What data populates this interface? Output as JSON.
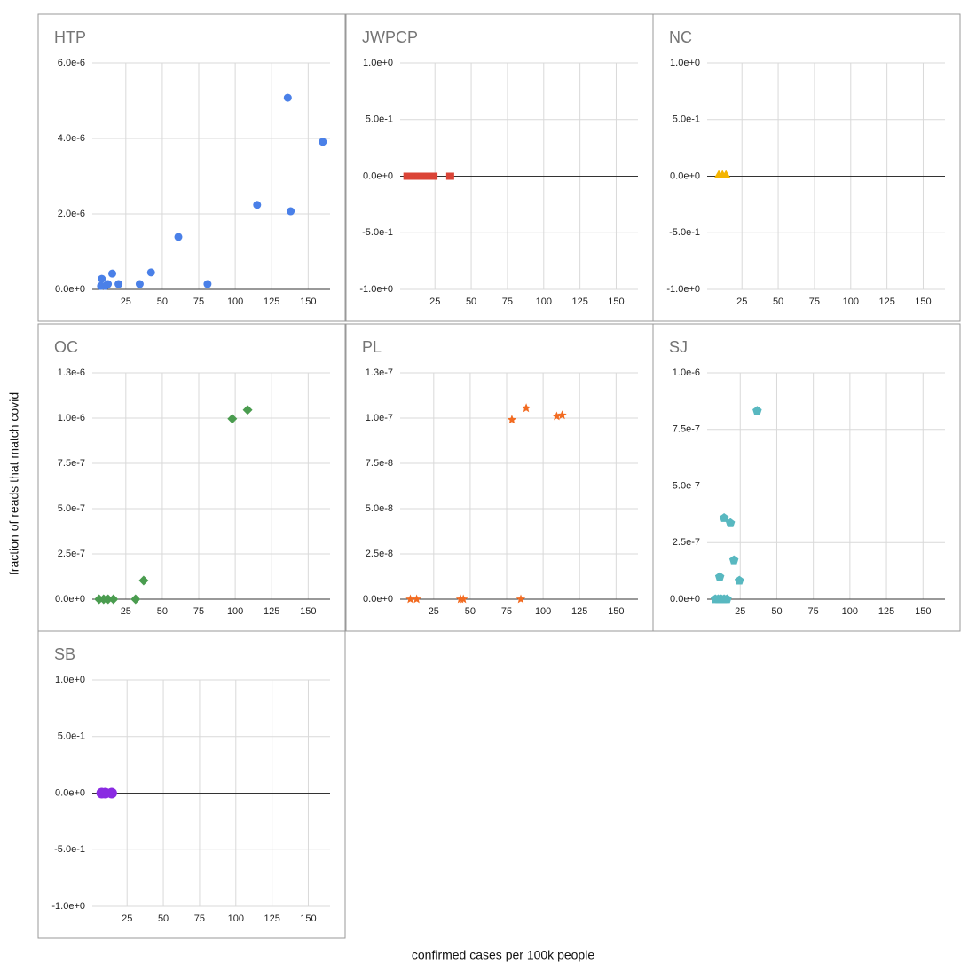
{
  "x_label": "confirmed cases per 100k people",
  "y_label": "fraction of reads that match covid",
  "chart_data": [
    {
      "type": "scatter",
      "title": "HTP",
      "color": "#4a80e8",
      "marker": "circle",
      "grid": true,
      "x": [
        8.5,
        8,
        11,
        12.7,
        15.7,
        20,
        34.5,
        42.3,
        61,
        81,
        115,
        136,
        138,
        160
      ],
      "values": [
        2.8e-07,
        9e-08,
        9e-08,
        1.4e-07,
        4.2e-07,
        1.4e-07,
        1.4e-07,
        4.5e-07,
        1.39e-06,
        1.4e-07,
        2.24e-06,
        5.08e-06,
        2.07e-06,
        3.91e-06
      ],
      "xlim": [
        2,
        165
      ],
      "ylim": [
        0,
        6e-06
      ],
      "xticks": [
        25,
        50,
        75,
        100,
        125,
        150
      ],
      "yticks": [
        {
          "value": 0,
          "label": "0.0e+0"
        },
        {
          "value": 2e-06,
          "label": "2.0e-6"
        },
        {
          "value": 4e-06,
          "label": "4.0e-6"
        },
        {
          "value": 6e-06,
          "label": "6.0e-6"
        }
      ]
    },
    {
      "type": "scatter",
      "title": "JWPCP",
      "color": "#db4437",
      "marker": "square",
      "grid": true,
      "x": [
        6,
        8,
        10,
        12,
        14,
        16,
        18,
        20,
        22,
        24,
        35.5
      ],
      "values": [
        0,
        0,
        0,
        0,
        0,
        0,
        0,
        0,
        0,
        0,
        0
      ],
      "xlim": [
        1,
        165
      ],
      "ylim": [
        -1,
        1
      ],
      "xticks": [
        25,
        50,
        75,
        100,
        125,
        150
      ],
      "yticks": [
        {
          "value": -1,
          "label": "-1.0e+0"
        },
        {
          "value": -0.5,
          "label": "-5.0e-1"
        },
        {
          "value": 0,
          "label": "0.0e+0"
        },
        {
          "value": 0.5,
          "label": "5.0e-1"
        },
        {
          "value": 1,
          "label": "1.0e+0"
        }
      ]
    },
    {
      "type": "scatter",
      "title": "NC",
      "color": "#f4b400",
      "marker": "triangle",
      "grid": true,
      "x": [
        9,
        11.5,
        14
      ],
      "values": [
        0,
        0,
        0
      ],
      "xlim": [
        1,
        165
      ],
      "ylim": [
        -1,
        1
      ],
      "xticks": [
        25,
        50,
        75,
        100,
        125,
        150
      ],
      "yticks": [
        {
          "value": -1,
          "label": "-1.0e+0"
        },
        {
          "value": -0.5,
          "label": "-5.0e-1"
        },
        {
          "value": 0,
          "label": "0.0e+0"
        },
        {
          "value": 0.5,
          "label": "5.0e-1"
        },
        {
          "value": 1,
          "label": "1.0e+0"
        }
      ]
    },
    {
      "type": "scatter",
      "title": "OC",
      "color": "#4a9c4f",
      "marker": "diamond",
      "grid": true,
      "x": [
        6.7,
        9.8,
        12.8,
        16.5,
        31.7,
        37.2,
        98,
        108.5
      ],
      "values": [
        0,
        0,
        0,
        0,
        0,
        1.03e-07,
        9.96e-07,
        1.045e-06
      ],
      "xlim": [
        2,
        165
      ],
      "ylim": [
        0,
        1.25e-06
      ],
      "xticks": [
        25,
        50,
        75,
        100,
        125,
        150
      ],
      "yticks": [
        {
          "value": 0,
          "label": "0.0e+0"
        },
        {
          "value": 2.5e-07,
          "label": "2.5e-7"
        },
        {
          "value": 5e-07,
          "label": "5.0e-7"
        },
        {
          "value": 7.5e-07,
          "label": "7.5e-7"
        },
        {
          "value": 1e-06,
          "label": "1.0e-6"
        },
        {
          "value": 1.25e-06,
          "label": "1.3e-6"
        }
      ]
    },
    {
      "type": "scatter",
      "title": "PL",
      "color": "#f26b21",
      "marker": "star",
      "grid": true,
      "x": [
        9,
        13.3,
        43.4,
        45.3,
        84.7,
        78.6,
        88.4,
        109.3,
        113
      ],
      "values": [
        0,
        0,
        0,
        0,
        0,
        9.91e-08,
        1.055e-07,
        1.01e-07,
        1.016e-07
      ],
      "xlim": [
        2,
        165
      ],
      "ylim": [
        0,
        1.25e-07
      ],
      "xticks": [
        25,
        50,
        75,
        100,
        125,
        150
      ],
      "yticks": [
        {
          "value": 0,
          "label": "0.0e+0"
        },
        {
          "value": 2.5e-08,
          "label": "2.5e-8"
        },
        {
          "value": 5e-08,
          "label": "5.0e-8"
        },
        {
          "value": 7.5e-08,
          "label": "7.5e-8"
        },
        {
          "value": 1e-07,
          "label": "1.0e-7"
        },
        {
          "value": 1.25e-07,
          "label": "1.3e-7"
        }
      ]
    },
    {
      "type": "scatter",
      "title": "SJ",
      "color": "#58b8c0",
      "marker": "pentagon",
      "grid": true,
      "x": [
        8,
        10,
        12,
        14,
        16,
        11,
        14,
        18.3,
        20.7,
        24.4,
        36.6
      ],
      "values": [
        0,
        0,
        0,
        0,
        0,
        9.8e-08,
        3.59e-07,
        3.36e-07,
        1.72e-07,
        8.2e-08,
        8.32e-07
      ],
      "xlim": [
        2.4,
        165
      ],
      "ylim": [
        0,
        1e-06
      ],
      "xticks": [
        25,
        50,
        75,
        100,
        125,
        150
      ],
      "yticks": [
        {
          "value": 0,
          "label": "0.0e+0"
        },
        {
          "value": 2.5e-07,
          "label": "2.5e-7"
        },
        {
          "value": 5e-07,
          "label": "5.0e-7"
        },
        {
          "value": 7.5e-07,
          "label": "7.5e-7"
        },
        {
          "value": 1e-06,
          "label": "1.0e-6"
        }
      ]
    },
    {
      "type": "scatter",
      "title": "SB",
      "color": "#8a2be2",
      "marker": "circle-large",
      "grid": true,
      "x": [
        7.5,
        10,
        14.4
      ],
      "values": [
        0,
        0,
        0
      ],
      "xlim": [
        1,
        165
      ],
      "ylim": [
        -1,
        1
      ],
      "xticks": [
        25,
        50,
        75,
        100,
        125,
        150
      ],
      "yticks": [
        {
          "value": -1,
          "label": "-1.0e+0"
        },
        {
          "value": -0.5,
          "label": "-5.0e-1"
        },
        {
          "value": 0,
          "label": "0.0e+0"
        },
        {
          "value": 0.5,
          "label": "5.0e-1"
        },
        {
          "value": 1,
          "label": "1.0e+0"
        }
      ]
    }
  ]
}
